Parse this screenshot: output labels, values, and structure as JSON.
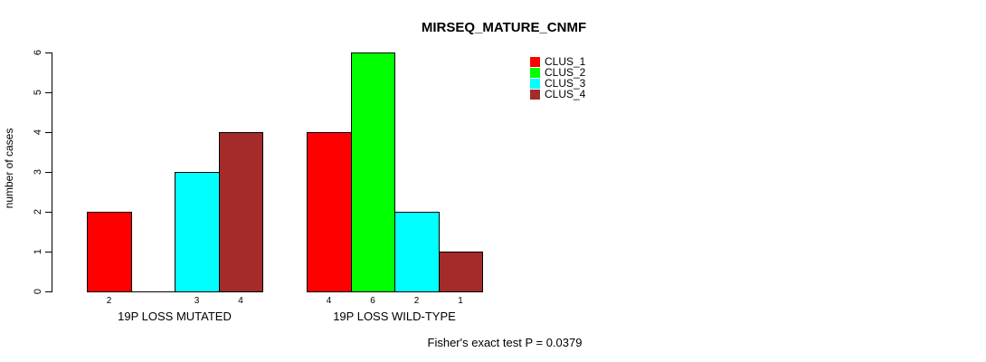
{
  "chart_data": {
    "type": "bar",
    "title": "MIRSEQ_MATURE_CNMF",
    "ylabel": "number of cases",
    "xlabel": "",
    "categories": [
      "19P LOSS MUTATED",
      "19P LOSS WILD-TYPE"
    ],
    "series": [
      {
        "name": "CLUS_1",
        "color": "#ff0000",
        "values": [
          2,
          4
        ]
      },
      {
        "name": "CLUS_2",
        "color": "#00ff00",
        "values": [
          0,
          6
        ]
      },
      {
        "name": "CLUS_3",
        "color": "#00ffff",
        "values": [
          3,
          2
        ]
      },
      {
        "name": "CLUS_4",
        "color": "#a52a2a",
        "values": [
          4,
          1
        ]
      }
    ],
    "ylim": [
      0,
      6
    ],
    "yticks": [
      0,
      1,
      2,
      3,
      4,
      5,
      6
    ],
    "grid": false,
    "legend_position": "top-right",
    "bar_value_labels": true,
    "hide_zero_bars": true,
    "annotation": "Fisher's exact test P = 0.0379"
  },
  "colors": {
    "background": "#ffffff",
    "axis": "#000000",
    "text": "#000000"
  }
}
